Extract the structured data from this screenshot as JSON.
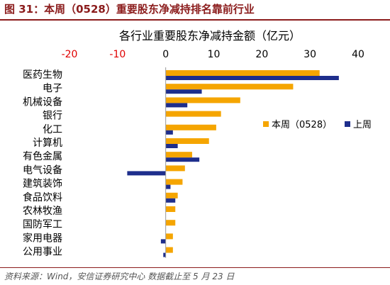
{
  "figure": {
    "title": "图 31：本周（0528）重要股东净减持排名靠前行业",
    "source": "资料来源：Wind，安信证券研究中心    数据截止至 5 月 23 日"
  },
  "chart_data": {
    "type": "bar",
    "orientation": "horizontal",
    "title": "各行业重要股东净减持金额（亿元）",
    "xlabel": "",
    "ylabel": "",
    "xlim": [
      -20,
      40
    ],
    "x_ticks": [
      -20,
      -10,
      0,
      10,
      20,
      30,
      40
    ],
    "negative_tick_color": "#e00000",
    "tick_color": "#000000",
    "grid": false,
    "legend_position": "right",
    "categories": [
      "医药生物",
      "电子",
      "机械设备",
      "银行",
      "化工",
      "计算机",
      "有色金属",
      "电气设备",
      "建筑装饰",
      "食品饮料",
      "农林牧渔",
      "国防军工",
      "家用电器",
      "公用事业"
    ],
    "series": [
      {
        "name": "本周（0528）",
        "color": "#f5a500",
        "values": [
          32,
          26.5,
          15.5,
          11.5,
          10.5,
          9,
          5.5,
          4,
          3.5,
          2.5,
          2,
          2,
          1.5,
          1.5
        ]
      },
      {
        "name": "上周",
        "color": "#1e2e8c",
        "values": [
          36,
          7.5,
          4.5,
          0,
          1.5,
          2.5,
          7,
          -8,
          1,
          2,
          0,
          0,
          -1,
          -0.5
        ]
      }
    ]
  }
}
